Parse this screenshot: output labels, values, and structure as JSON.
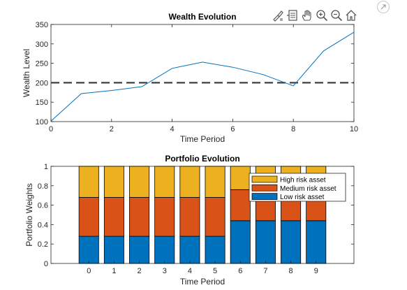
{
  "toolbar": {
    "items": [
      {
        "name": "brush-icon"
      },
      {
        "name": "datatip-icon"
      },
      {
        "name": "pan-hand-icon"
      },
      {
        "name": "zoom-in-icon"
      },
      {
        "name": "zoom-out-icon"
      },
      {
        "name": "home-icon"
      }
    ]
  },
  "colors": {
    "line": "#0072BD",
    "target": "#404040",
    "low": "#0072BD",
    "medium": "#D95319",
    "high": "#EDB120"
  },
  "chart_data": [
    {
      "type": "line",
      "title": "Wealth Evolution",
      "xlabel": "Time Period",
      "ylabel": "Wealth Level",
      "xlim": [
        0,
        10
      ],
      "ylim": [
        100,
        350
      ],
      "xticks": [
        "0",
        "2",
        "4",
        "6",
        "8",
        "10"
      ],
      "yticks": [
        "100",
        "150",
        "200",
        "250",
        "300",
        "350"
      ],
      "grid": false,
      "x": [
        0,
        1,
        2,
        3,
        4,
        5,
        6,
        7,
        8,
        9,
        10
      ],
      "series": [
        {
          "values": [
            101,
            172,
            180,
            190,
            237,
            253,
            240,
            221,
            192,
            282,
            330
          ]
        }
      ],
      "reference_line": {
        "y": 200,
        "style": "dashed"
      }
    },
    {
      "type": "bar",
      "stacked": true,
      "title": "Portfolio Evolution",
      "xlabel": "Time Period",
      "ylabel": "Portfolio Weights",
      "ylim": [
        0,
        1
      ],
      "yticks": [
        "0",
        "0.2",
        "0.4",
        "0.6",
        "0.8",
        "1"
      ],
      "categories": [
        "0",
        "1",
        "2",
        "3",
        "4",
        "5",
        "6",
        "7",
        "8",
        "9"
      ],
      "grid": false,
      "legend_position": "top-right",
      "series": [
        {
          "name": "Low risk asset",
          "values": [
            0.28,
            0.28,
            0.28,
            0.28,
            0.28,
            0.28,
            0.44,
            0.44,
            0.44,
            0.44
          ]
        },
        {
          "name": "Medium risk asset",
          "values": [
            0.4,
            0.4,
            0.4,
            0.4,
            0.4,
            0.4,
            0.32,
            0.32,
            0.32,
            0.32
          ]
        },
        {
          "name": "High risk asset",
          "values": [
            0.32,
            0.32,
            0.32,
            0.32,
            0.32,
            0.32,
            0.24,
            0.24,
            0.24,
            0.24
          ]
        }
      ],
      "legend_order": [
        "High risk asset",
        "Medium risk asset",
        "Low risk asset"
      ]
    }
  ]
}
